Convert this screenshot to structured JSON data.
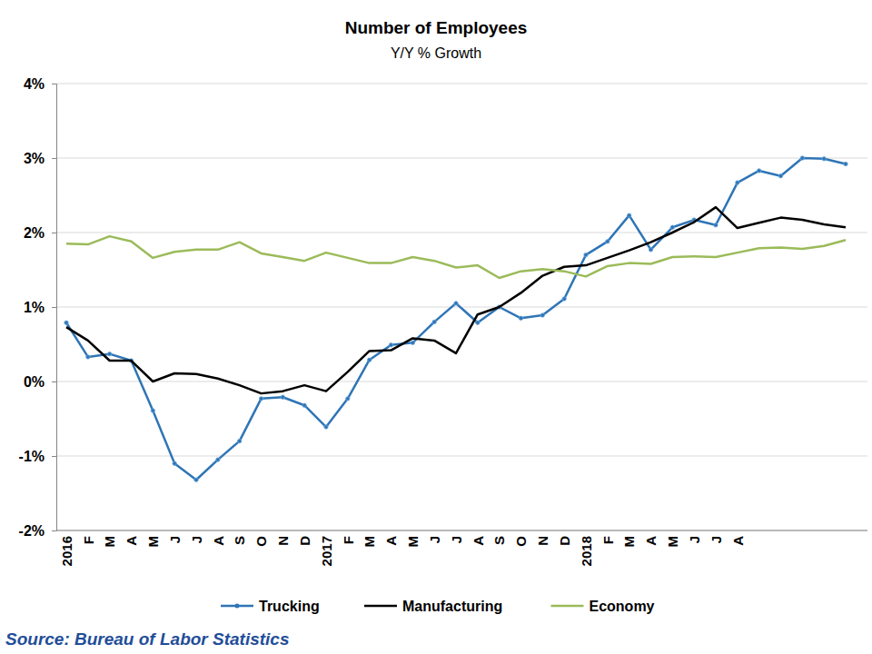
{
  "chart_data": {
    "type": "line",
    "title": "Number of Employees",
    "subtitle": "Y/Y % Growth",
    "source": "Source: Bureau of Labor Statistics",
    "categories": [
      "2016",
      "F",
      "M",
      "A",
      "M",
      "J",
      "J",
      "A",
      "S",
      "O",
      "N",
      "D",
      "2017",
      "F",
      "M",
      "A",
      "M",
      "J",
      "J",
      "A",
      "S",
      "O",
      "N",
      "D",
      "2018",
      "F",
      "M",
      "A",
      "M",
      "J",
      "J",
      "A",
      null,
      null,
      null,
      null,
      null
    ],
    "series": [
      {
        "name": "Trucking",
        "color": "#2e75b6",
        "marker": "circle",
        "values": [
          0.79,
          0.33,
          0.37,
          0.28,
          -0.39,
          -1.1,
          -1.32,
          -1.05,
          -0.8,
          -0.23,
          -0.21,
          -0.32,
          -0.61,
          -0.23,
          0.29,
          0.49,
          0.52,
          0.8,
          1.05,
          0.79,
          1.0,
          0.85,
          0.89,
          1.11,
          1.7,
          1.88,
          2.23,
          1.77,
          2.07,
          2.17,
          2.1,
          2.67,
          2.83,
          2.76,
          3.0,
          2.99,
          2.92
        ]
      },
      {
        "name": "Manufacturing",
        "color": "#000000",
        "values": [
          0.73,
          0.55,
          0.28,
          0.28,
          0.0,
          0.11,
          0.1,
          0.04,
          -0.05,
          -0.16,
          -0.13,
          -0.05,
          -0.13,
          0.13,
          0.41,
          0.42,
          0.58,
          0.55,
          0.38,
          0.9,
          1.0,
          1.19,
          1.42,
          1.54,
          1.56,
          1.66,
          1.76,
          1.87,
          2.0,
          2.14,
          2.34,
          2.06,
          2.13,
          2.2,
          2.17,
          2.11,
          2.07
        ]
      },
      {
        "name": "Economy",
        "color": "#9bbb59",
        "values": [
          1.85,
          1.84,
          1.95,
          1.88,
          1.66,
          1.74,
          1.77,
          1.77,
          1.87,
          1.72,
          1.67,
          1.62,
          1.73,
          1.66,
          1.59,
          1.59,
          1.67,
          1.62,
          1.53,
          1.56,
          1.39,
          1.48,
          1.51,
          1.48,
          1.41,
          1.55,
          1.59,
          1.58,
          1.67,
          1.68,
          1.67,
          1.73,
          1.79,
          1.8,
          1.78,
          1.82,
          1.9
        ]
      }
    ],
    "ylim": [
      -2,
      4
    ],
    "yticks": [
      {
        "value": -2,
        "label": "-2%"
      },
      {
        "value": -1,
        "label": "-1%"
      },
      {
        "value": 0,
        "label": "0%"
      },
      {
        "value": 1,
        "label": "1%"
      },
      {
        "value": 2,
        "label": "2%"
      },
      {
        "value": 3,
        "label": "3%"
      },
      {
        "value": 4,
        "label": "4%"
      }
    ],
    "grid": true,
    "legend": "bottom"
  }
}
